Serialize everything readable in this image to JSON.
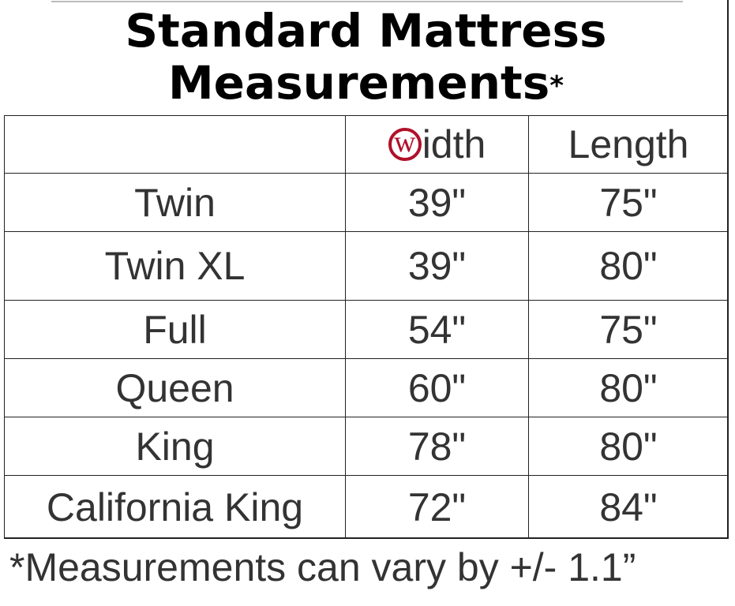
{
  "title": {
    "text": "Standard Mattress Measurements",
    "mark": "*"
  },
  "table": {
    "header": {
      "width": {
        "logo": "w",
        "rest": "idth"
      },
      "length": "Length"
    },
    "rows": [
      [
        "Twin",
        "39\"",
        "75\""
      ],
      [
        "Twin XL",
        "39\"",
        "80\""
      ],
      [
        "Full",
        "54\"",
        "75\""
      ],
      [
        "Queen",
        "60\"",
        "80\""
      ],
      [
        "King",
        "78\"",
        "80\""
      ],
      [
        "California King",
        "72\"",
        "84\""
      ]
    ]
  },
  "footnote": "*Measurements can vary by +/- 1.1”"
}
